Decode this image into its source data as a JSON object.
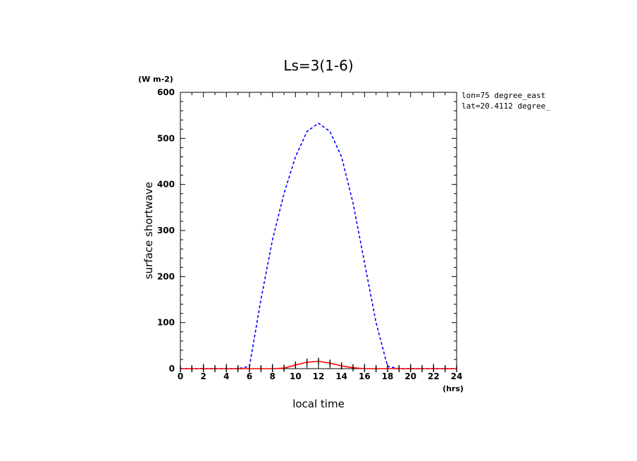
{
  "chart_data": {
    "type": "line",
    "title": "Ls=3(1-6)",
    "xlabel": "local time",
    "ylabel": "surface shortwave",
    "x_unit": "(hrs)",
    "y_unit": "(W m-2)",
    "annotations": [
      "lon=75 degree_east",
      "lat=20.4112 degree_"
    ],
    "xlim": [
      0,
      24
    ],
    "ylim": [
      0,
      600
    ],
    "x_ticks": [
      0,
      2,
      4,
      6,
      8,
      10,
      12,
      14,
      16,
      18,
      20,
      22,
      24
    ],
    "y_ticks": [
      0,
      100,
      200,
      300,
      400,
      500,
      600
    ],
    "x": [
      0,
      1,
      2,
      3,
      4,
      5,
      6,
      7,
      8,
      9,
      10,
      11,
      12,
      13,
      14,
      15,
      16,
      17,
      18,
      19,
      20,
      21,
      22,
      23,
      24
    ],
    "series": [
      {
        "color": "#0000ff",
        "style": "dashed",
        "values": [
          0,
          0,
          0,
          0,
          0,
          0,
          5,
          150,
          280,
          380,
          460,
          515,
          533,
          515,
          460,
          360,
          230,
          100,
          5,
          0,
          0,
          0,
          0,
          0,
          0
        ]
      },
      {
        "color": "#ff0000",
        "style": "solid",
        "markers": true,
        "values": [
          0,
          0,
          0,
          0,
          0,
          0,
          0,
          0,
          0,
          1,
          8,
          14,
          16,
          12,
          6,
          2,
          0,
          0,
          0,
          0,
          0,
          0,
          0,
          0,
          0
        ]
      }
    ],
    "grid": false,
    "legend": "none"
  }
}
